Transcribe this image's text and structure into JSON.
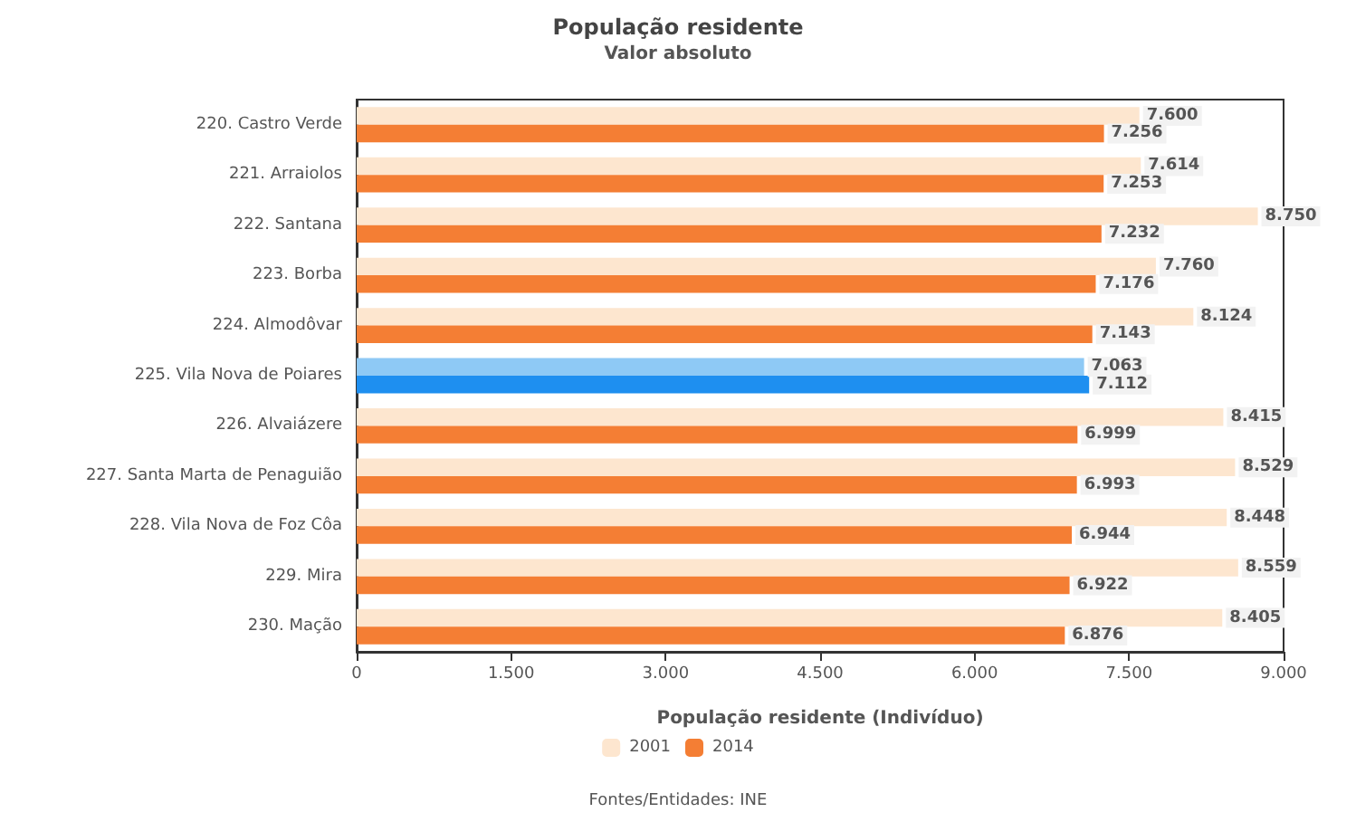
{
  "chart_data": {
    "type": "bar",
    "orientation": "horizontal",
    "title": "População residente",
    "subtitle": "Valor absoluto",
    "xlabel": "População residente (Indivíduo)",
    "categories": [
      "220. Castro Verde",
      "221. Arraiolos",
      "222. Santana",
      "223. Borba",
      "224. Almodôvar",
      "225. Vila Nova de Poiares",
      "226. Alvaiázere",
      "227. Santa Marta de Penaguião",
      "228. Vila Nova de Foz Côa",
      "229. Mira",
      "230. Mação"
    ],
    "series": [
      {
        "name": "2001",
        "color": "#fde6cf",
        "colors": [
          "#fde6cf",
          "#fde6cf",
          "#fde6cf",
          "#fde6cf",
          "#fde6cf",
          "#8ec9f5",
          "#fde6cf",
          "#fde6cf",
          "#fde6cf",
          "#fde6cf",
          "#fde6cf"
        ],
        "values": [
          7600,
          7614,
          8750,
          7760,
          8124,
          7063,
          8415,
          8529,
          8448,
          8559,
          8405
        ],
        "value_labels": [
          "7.600",
          "7.614",
          "8.750",
          "7.760",
          "8.124",
          "7.063",
          "8.415",
          "8.529",
          "8.448",
          "8.559",
          "8.405"
        ]
      },
      {
        "name": "2014",
        "color": "#f47e34",
        "colors": [
          "#f47e34",
          "#f47e34",
          "#f47e34",
          "#f47e34",
          "#f47e34",
          "#1e8ff0",
          "#f47e34",
          "#f47e34",
          "#f47e34",
          "#f47e34",
          "#f47e34"
        ],
        "values": [
          7256,
          7253,
          7232,
          7176,
          7143,
          7112,
          6999,
          6993,
          6944,
          6922,
          6876
        ],
        "value_labels": [
          "7.256",
          "7.253",
          "7.232",
          "7.176",
          "7.143",
          "7.112",
          "6.999",
          "6.993",
          "6.944",
          "6.922",
          "6.876"
        ]
      }
    ],
    "xlim": [
      0,
      9000
    ],
    "xticks": [
      {
        "value": 0,
        "label": "0"
      },
      {
        "value": 1500,
        "label": "1.500"
      },
      {
        "value": 3000,
        "label": "3.000"
      },
      {
        "value": 4500,
        "label": "4.500"
      },
      {
        "value": 6000,
        "label": "6.000"
      },
      {
        "value": 7500,
        "label": "7.500"
      },
      {
        "value": 9000,
        "label": "9.000"
      }
    ],
    "grid": false,
    "legend": "bottom",
    "annotations": [
      "Fontes/Entidades: INE"
    ]
  }
}
